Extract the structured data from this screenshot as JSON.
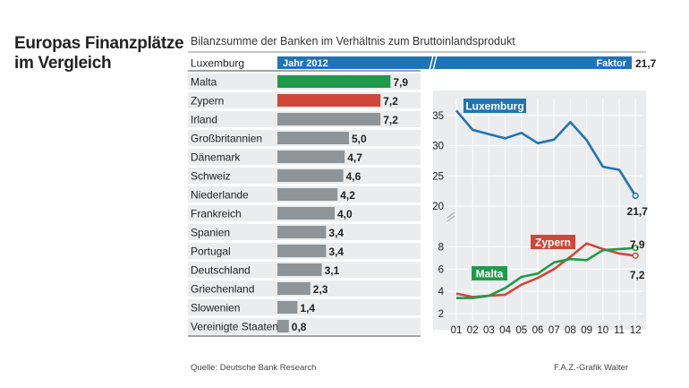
{
  "header": {
    "title_line1": "Europas Finanzplätze",
    "title_line2": "im Vergleich",
    "subtitle": "Bilanzsumme der Banken im Verhältnis zum Bruttoinlandsprodukt"
  },
  "footer": {
    "source": "Quelle: Deutsche Bank Research",
    "credit": "F.A.Z.-Grafik Walter"
  },
  "colors": {
    "luxembourg": "#1f74b6",
    "malta": "#1f9a4c",
    "zypern": "#d0473a",
    "gray_bar": "#8e9497",
    "row_bg": "#ebeced"
  },
  "chart_data": [
    {
      "type": "bar",
      "orientation": "horizontal",
      "year_label": "Jahr 2012",
      "value_label": "Faktor",
      "categories": [
        "Luxemburg",
        "Malta",
        "Zypern",
        "Irland",
        "Großbritannien",
        "Dänemark",
        "Schweiz",
        "Niederlande",
        "Frankreich",
        "Spanien",
        "Portugal",
        "Deutschland",
        "Griechenland",
        "Slowenien",
        "Vereinigte Staaten"
      ],
      "values": [
        21.7,
        7.9,
        7.2,
        7.2,
        5.0,
        4.7,
        4.6,
        4.2,
        4.0,
        3.4,
        3.4,
        3.1,
        2.3,
        1.4,
        0.8
      ],
      "value_labels": [
        "21,7",
        "7,9",
        "7,2",
        "7,2",
        "5,0",
        "4,7",
        "4,6",
        "4,2",
        "4,0",
        "3,4",
        "3,4",
        "3,1",
        "2,3",
        "1,4",
        "0,8"
      ],
      "highlight": {
        "Luxemburg": "luxembourg",
        "Malta": "malta",
        "Zypern": "zypern"
      },
      "axis_break_after": 8.0
    },
    {
      "type": "line",
      "x": [
        "01",
        "02",
        "03",
        "04",
        "05",
        "06",
        "07",
        "08",
        "09",
        "10",
        "11",
        "12"
      ],
      "panels": [
        {
          "ylim": [
            20,
            36
          ],
          "yticks": [
            20,
            25,
            30,
            35
          ],
          "series": [
            {
              "name": "Luxemburg",
              "color": "luxembourg",
              "values": [
                35.8,
                32.6,
                31.9,
                31.2,
                32.1,
                30.4,
                31.0,
                33.9,
                30.9,
                26.5,
                26.0,
                21.7
              ],
              "end_label": "21,7"
            }
          ]
        },
        {
          "ylim": [
            2,
            9
          ],
          "yticks": [
            2,
            4,
            6,
            8
          ],
          "series": [
            {
              "name": "Zypern",
              "color": "zypern",
              "values": [
                3.8,
                3.5,
                3.6,
                3.7,
                4.6,
                5.2,
                6.0,
                7.1,
                8.3,
                7.8,
                7.4,
                7.2
              ],
              "end_label": "7,2"
            },
            {
              "name": "Malta",
              "color": "malta",
              "values": [
                3.4,
                3.4,
                3.6,
                4.3,
                5.3,
                5.6,
                6.6,
                6.9,
                6.8,
                7.7,
                7.8,
                7.9
              ],
              "end_label": "7,9"
            }
          ]
        }
      ]
    }
  ]
}
